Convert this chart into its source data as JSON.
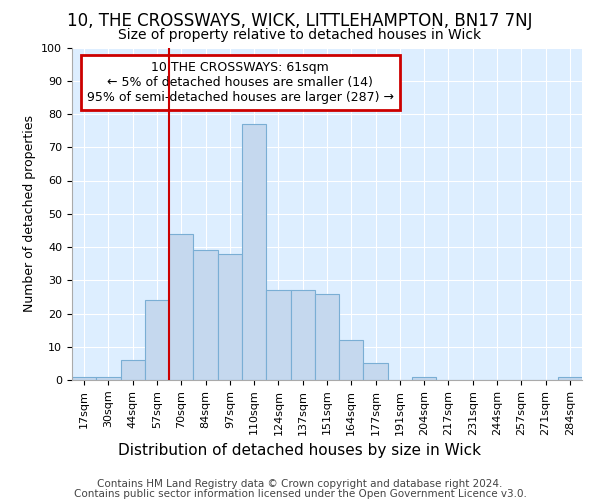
{
  "title": "10, THE CROSSWAYS, WICK, LITTLEHAMPTON, BN17 7NJ",
  "subtitle": "Size of property relative to detached houses in Wick",
  "xlabel": "Distribution of detached houses by size in Wick",
  "ylabel": "Number of detached properties",
  "footer_line1": "Contains HM Land Registry data © Crown copyright and database right 2024.",
  "footer_line2": "Contains public sector information licensed under the Open Government Licence v3.0.",
  "bar_labels": [
    "17sqm",
    "30sqm",
    "44sqm",
    "57sqm",
    "70sqm",
    "84sqm",
    "97sqm",
    "110sqm",
    "124sqm",
    "137sqm",
    "151sqm",
    "164sqm",
    "177sqm",
    "191sqm",
    "204sqm",
    "217sqm",
    "231sqm",
    "244sqm",
    "257sqm",
    "271sqm",
    "284sqm"
  ],
  "bar_values": [
    1,
    1,
    6,
    24,
    44,
    39,
    38,
    77,
    27,
    27,
    26,
    12,
    5,
    0,
    1,
    0,
    0,
    0,
    0,
    0,
    1
  ],
  "bar_color": "#c5d8ee",
  "bar_edge_color": "#7aaed4",
  "background_color": "#ddeeff",
  "fig_background_color": "#ffffff",
  "annotation_box_text": "10 THE CROSSWAYS: 61sqm\n← 5% of detached houses are smaller (14)\n95% of semi-detached houses are larger (287) →",
  "annotation_box_color": "#ffffff",
  "annotation_box_edge_color": "#cc0000",
  "vline_color": "#cc0000",
  "vline_x": 3.5,
  "ylim": [
    0,
    100
  ],
  "yticks": [
    0,
    10,
    20,
    30,
    40,
    50,
    60,
    70,
    80,
    90,
    100
  ],
  "grid_color": "#ffffff",
  "title_fontsize": 12,
  "subtitle_fontsize": 10,
  "xlabel_fontsize": 11,
  "ylabel_fontsize": 9,
  "tick_fontsize": 8,
  "annotation_fontsize": 9,
  "footer_fontsize": 7.5
}
